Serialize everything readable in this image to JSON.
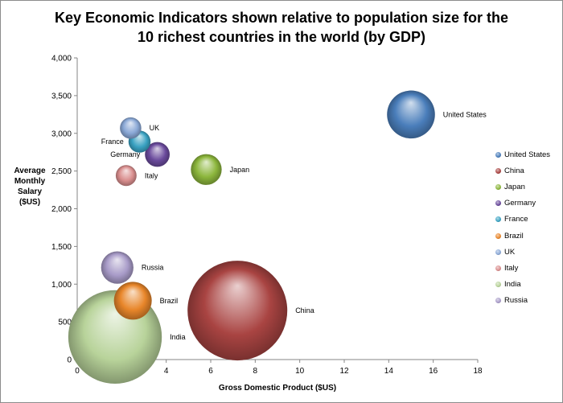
{
  "chart_data": {
    "type": "scatter",
    "title_lines": [
      "Key Economic Indicators shown relative to population size for the",
      "10 richest countries in the world (by GDP)"
    ],
    "xlabel": "Gross Domestic Product ($US)",
    "ylabel_lines": [
      "Average",
      "Monthly",
      "Salary",
      "($US)"
    ],
    "xlim": [
      0,
      18
    ],
    "ylim": [
      0,
      4000
    ],
    "x_ticks": [
      0,
      2,
      4,
      6,
      8,
      10,
      12,
      14,
      16,
      18
    ],
    "x_tick_labels": [
      "0",
      "2",
      "4",
      "6",
      "8",
      "10",
      "12",
      "14",
      "16",
      "18"
    ],
    "y_ticks": [
      0,
      500,
      1000,
      1500,
      2000,
      2500,
      3000,
      3500,
      4000
    ],
    "y_tick_labels": [
      "0",
      "500",
      "1,000",
      "1,500",
      "2,000",
      "2,500",
      "3,000",
      "3,500",
      "4,000"
    ],
    "grid": false,
    "legend_position": "right",
    "series": [
      {
        "name": "United States",
        "x": 15.0,
        "y": 3250,
        "size": 307,
        "color": "#4a7ebb"
      },
      {
        "name": "China",
        "x": 7.2,
        "y": 650,
        "size": 1330,
        "color": "#a94442"
      },
      {
        "name": "Japan",
        "x": 5.8,
        "y": 2520,
        "size": 127,
        "color": "#8cb63c"
      },
      {
        "name": "Germany",
        "x": 3.6,
        "y": 2720,
        "size": 82,
        "color": "#6a4a9c"
      },
      {
        "name": "France",
        "x": 2.8,
        "y": 2890,
        "size": 65,
        "color": "#3aa2c2"
      },
      {
        "name": "Brazil",
        "x": 2.5,
        "y": 780,
        "size": 191,
        "color": "#e8862a"
      },
      {
        "name": "UK",
        "x": 2.4,
        "y": 3070,
        "size": 61,
        "color": "#8aa8d6"
      },
      {
        "name": "Italy",
        "x": 2.2,
        "y": 2440,
        "size": 58,
        "color": "#d98e8e"
      },
      {
        "name": "India",
        "x": 1.7,
        "y": 300,
        "size": 1170,
        "color": "#b8d39a"
      },
      {
        "name": "Russia",
        "x": 1.8,
        "y": 1220,
        "size": 140,
        "color": "#a89bc8"
      }
    ]
  }
}
